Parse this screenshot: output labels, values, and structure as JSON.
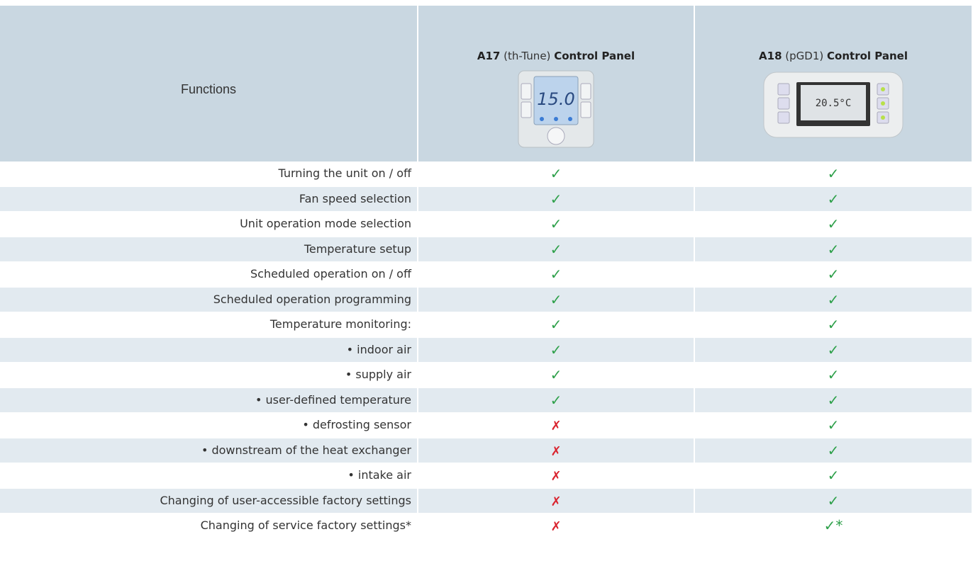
{
  "header": {
    "functions": "Functions",
    "columns": [
      {
        "code": "A17",
        "model": "(th-Tune)",
        "label": "Control Panel"
      },
      {
        "code": "A18",
        "model": "(pGD1)",
        "label": "Control Panel"
      }
    ]
  },
  "rows": [
    [
      "Turning the unit on / off",
      "✓",
      "✓"
    ],
    [
      "Fan speed selection",
      "✓",
      "✓"
    ],
    [
      "Unit operation mode selection",
      "✓",
      "✓"
    ],
    [
      "Temperature setup",
      "✓",
      "✓"
    ],
    [
      "Scheduled operation on / off",
      "✓",
      "✓"
    ],
    [
      "Scheduled operation programming",
      "✓",
      "✓"
    ],
    [
      "Temperature monitoring:",
      "✓",
      "✓"
    ],
    [
      "• indoor air",
      "✓",
      "✓"
    ],
    [
      "• supply air",
      "✓",
      "✓"
    ],
    [
      "• user-defined temperature",
      "✓",
      "✓"
    ],
    [
      "• defrosting sensor",
      "✗",
      "✓"
    ],
    [
      "• downstream of the heat exchanger",
      "✗",
      "✓"
    ],
    [
      "• intake air",
      "✗",
      "✓"
    ],
    [
      "Changing of user-accessible factory settings",
      "✗",
      "✓"
    ],
    [
      "Changing of service factory settings*",
      "✗",
      "✓*"
    ]
  ]
}
